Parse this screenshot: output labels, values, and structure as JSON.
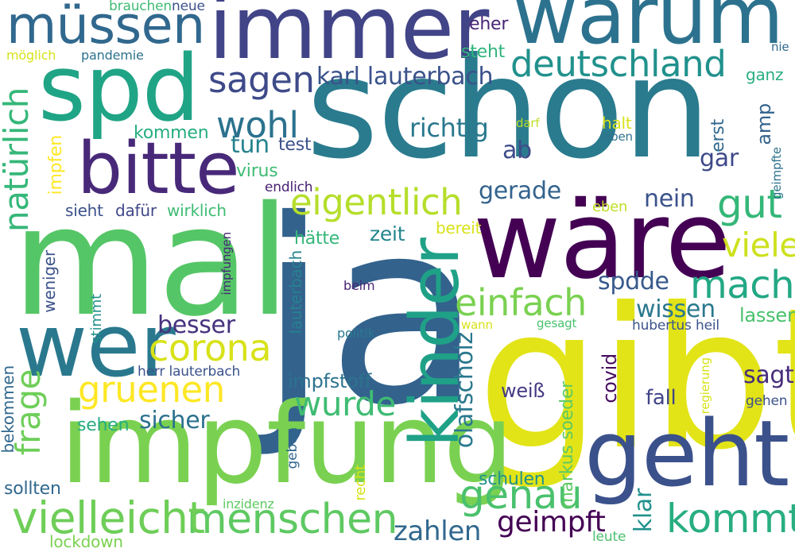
{
  "words": [
    {
      "text": "schon",
      "color": "#2a7b8e"
    },
    {
      "text": "ja",
      "color": "#33628d"
    },
    {
      "text": "mal",
      "color": "#55c667"
    },
    {
      "text": "gibt",
      "color": "#e2e418"
    },
    {
      "text": "impfung",
      "color": "#7ad151"
    },
    {
      "text": "wäre",
      "color": "#440154"
    },
    {
      "text": "immer",
      "color": "#414487"
    },
    {
      "text": "warum",
      "color": "#2c728e"
    },
    {
      "text": "spd",
      "color": "#20a486"
    },
    {
      "text": "geht",
      "color": "#3b518b"
    },
    {
      "text": "wer",
      "color": "#2a788e"
    },
    {
      "text": "bitte",
      "color": "#482979"
    },
    {
      "text": "kinder",
      "color": "#1fa187"
    },
    {
      "text": "müssen",
      "color": "#31688e"
    },
    {
      "text": "deutschland",
      "color": "#21918c"
    },
    {
      "text": "menschen",
      "color": "#5ec962"
    },
    {
      "text": "vielleicht",
      "color": "#6ece58"
    },
    {
      "text": "eigentlich",
      "color": "#b5de2b"
    },
    {
      "text": "kommt",
      "color": "#28ae80"
    },
    {
      "text": "genau",
      "color": "#4ac16d"
    },
    {
      "text": "gut",
      "color": "#35b779"
    },
    {
      "text": "macht",
      "color": "#22a884"
    },
    {
      "text": "einfach",
      "color": "#7ad151"
    },
    {
      "text": "corona",
      "color": "#d8e219"
    },
    {
      "text": "gruenen",
      "color": "#fde725"
    },
    {
      "text": "wohl",
      "color": "#2c728e"
    },
    {
      "text": "sagen",
      "color": "#3e4a89"
    },
    {
      "text": "karl lauterbach",
      "color": "#3b528b"
    },
    {
      "text": "natürlich",
      "color": "#35b779"
    },
    {
      "text": "frage",
      "color": "#6ece58"
    },
    {
      "text": "wurde",
      "color": "#3fbc73"
    },
    {
      "text": "viele",
      "color": "#cde11d"
    },
    {
      "text": "geimpft",
      "color": "#440154"
    },
    {
      "text": "zahlen",
      "color": "#31688e"
    },
    {
      "text": "richtig",
      "color": "#2a788e"
    },
    {
      "text": "olafscholz",
      "color": "#2a788e"
    },
    {
      "text": "besser",
      "color": "#46327e"
    },
    {
      "text": "sicher",
      "color": "#2c728e"
    },
    {
      "text": "sagt",
      "color": "#472d7b"
    },
    {
      "text": "nein",
      "color": "#3b528b"
    },
    {
      "text": "gerade",
      "color": "#33638d"
    },
    {
      "text": "wissen",
      "color": "#2a788e"
    },
    {
      "text": "spdde",
      "color": "#38598c"
    },
    {
      "text": "klar",
      "color": "#21918c"
    },
    {
      "text": "ab",
      "color": "#3e4c8a"
    },
    {
      "text": "gar",
      "color": "#3e4989"
    },
    {
      "text": "lassen",
      "color": "#4ac16d"
    },
    {
      "text": "tun",
      "color": "#26828e"
    },
    {
      "text": "zeit",
      "color": "#24868e"
    },
    {
      "text": "fall",
      "color": "#404588"
    },
    {
      "text": "impfstoff",
      "color": "#2c738e"
    },
    {
      "text": "covid",
      "color": "#470e61"
    },
    {
      "text": "markus soeder",
      "color": "#5ec962"
    },
    {
      "text": "weiß",
      "color": "#443983"
    },
    {
      "text": "impfen",
      "color": "#fde725"
    },
    {
      "text": "sieht",
      "color": "#3b528b"
    },
    {
      "text": "dafür",
      "color": "#3f4788"
    },
    {
      "text": "wirklich",
      "color": "#3fbc73"
    },
    {
      "text": "kommen",
      "color": "#27ad81"
    },
    {
      "text": "test",
      "color": "#3b528b"
    },
    {
      "text": "virus",
      "color": "#3fbc73"
    },
    {
      "text": "endlich",
      "color": "#482173"
    },
    {
      "text": "hätte",
      "color": "#35b779"
    },
    {
      "text": "bereit",
      "color": "#d8e219"
    },
    {
      "text": "eben",
      "color": "#bddf26"
    },
    {
      "text": "halt",
      "color": "#d8e219"
    },
    {
      "text": "leben",
      "color": "#2c728e"
    },
    {
      "text": "darf",
      "color": "#bddf26"
    },
    {
      "text": "erst",
      "color": "#31688e"
    },
    {
      "text": "amp",
      "color": "#33638d"
    },
    {
      "text": "geimpfte",
      "color": "#2c728e"
    },
    {
      "text": "nie",
      "color": "#31688e"
    },
    {
      "text": "ganz",
      "color": "#28ae80"
    },
    {
      "text": "eher",
      "color": "#482475"
    },
    {
      "text": "steht",
      "color": "#2fb47c"
    },
    {
      "text": "brauchen",
      "color": "#3fbc73"
    },
    {
      "text": "neue",
      "color": "#3b528b"
    },
    {
      "text": "möglich",
      "color": "#d8e219"
    },
    {
      "text": "pandemie",
      "color": "#2c728e"
    },
    {
      "text": "weniger",
      "color": "#3b528b"
    },
    {
      "text": "stimmt",
      "color": "#21918c"
    },
    {
      "text": "impfungen",
      "color": "#482878"
    },
    {
      "text": "lauterbach",
      "color": "#26828e"
    },
    {
      "text": "beim",
      "color": "#482475"
    },
    {
      "text": "politik",
      "color": "#2a788e"
    },
    {
      "text": "wann",
      "color": "#d8e219"
    },
    {
      "text": "gesagt",
      "color": "#4ac16d"
    },
    {
      "text": "hubertus heil",
      "color": "#3b528b"
    },
    {
      "text": "herr lauterbach",
      "color": "#3b528b"
    },
    {
      "text": "regierung",
      "color": "#d8e219"
    },
    {
      "text": "gehen",
      "color": "#3b528b"
    },
    {
      "text": "bekommen",
      "color": "#31688e"
    },
    {
      "text": "sehen",
      "color": "#27ad81"
    },
    {
      "text": "geben",
      "color": "#31688e"
    },
    {
      "text": "recht",
      "color": "#d8e219"
    },
    {
      "text": "schulen",
      "color": "#21918c"
    },
    {
      "text": "sollten",
      "color": "#31688e"
    },
    {
      "text": "inzidenz",
      "color": "#5ec962"
    },
    {
      "text": "lockdown",
      "color": "#7ad151"
    },
    {
      "text": "leute",
      "color": "#4ac16d"
    }
  ]
}
